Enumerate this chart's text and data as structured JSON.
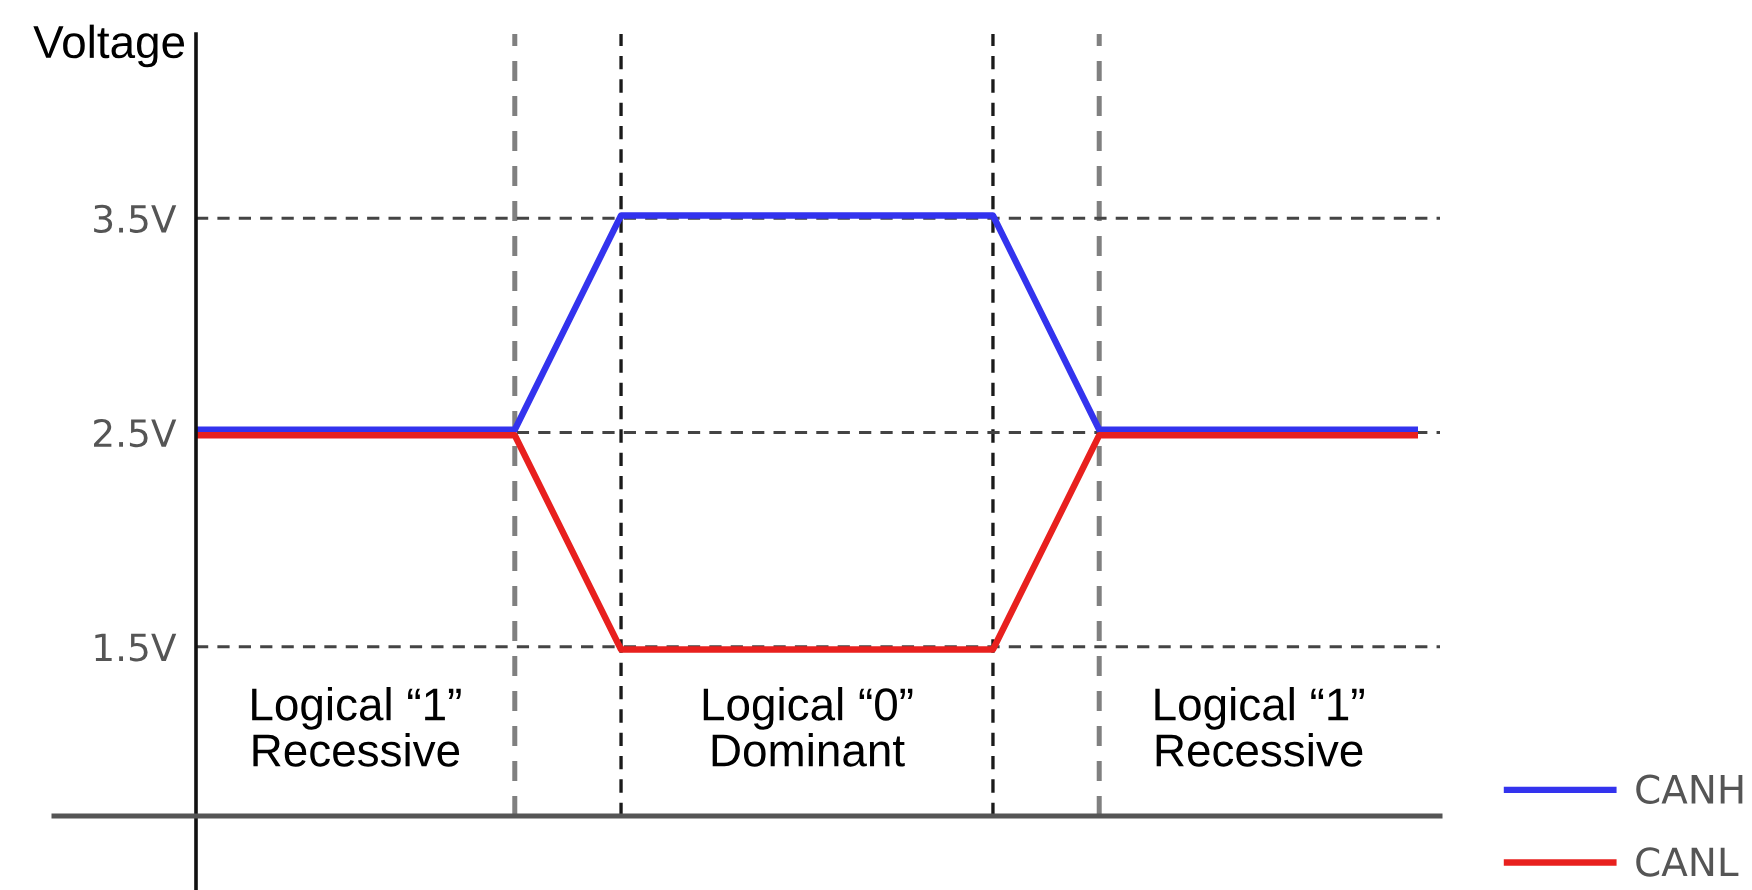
{
  "chart_data": {
    "type": "line",
    "ylabel": "Voltage",
    "categories": [
      null,
      null,
      null,
      null,
      null,
      null,
      null,
      null,
      null,
      null,
      null,
      null,
      null,
      null,
      null,
      null,
      null,
      null,
      null,
      null,
      null,
      null,
      null,
      null
    ],
    "series": [
      {
        "name": "CANH",
        "color": "#3333ee",
        "values": [
          2.5,
          2.5,
          2.5,
          2.5,
          2.5,
          2.5,
          2.5,
          3.0,
          3.5,
          3.5,
          3.5,
          3.5,
          3.5,
          3.5,
          3.5,
          3.5,
          3.0,
          2.5,
          2.5,
          2.5,
          2.5,
          2.5,
          2.5,
          2.5
        ]
      },
      {
        "name": "CANL",
        "color": "#e8201e",
        "values": [
          2.5,
          2.5,
          2.5,
          2.5,
          2.5,
          2.5,
          2.5,
          2.0,
          1.5,
          1.5,
          1.5,
          1.5,
          1.5,
          1.5,
          1.5,
          1.5,
          2.0,
          2.5,
          2.5,
          2.5,
          2.5,
          2.5,
          2.5,
          2.5
        ]
      }
    ],
    "ylim": [
      0.71,
      4.36
    ],
    "yticks": [
      {
        "value": 1.5,
        "label": "1.5V"
      },
      {
        "value": 2.5,
        "label": "2.5V"
      },
      {
        "value": 3.5,
        "label": "3.5V"
      }
    ],
    "tick_labels": "y",
    "grid": true,
    "legend": "bottom right",
    "annotations": [
      "Logical “1”\nRecessive",
      "Logical “0”\nDominant",
      "Logical “1”\nRecessive"
    ]
  }
}
